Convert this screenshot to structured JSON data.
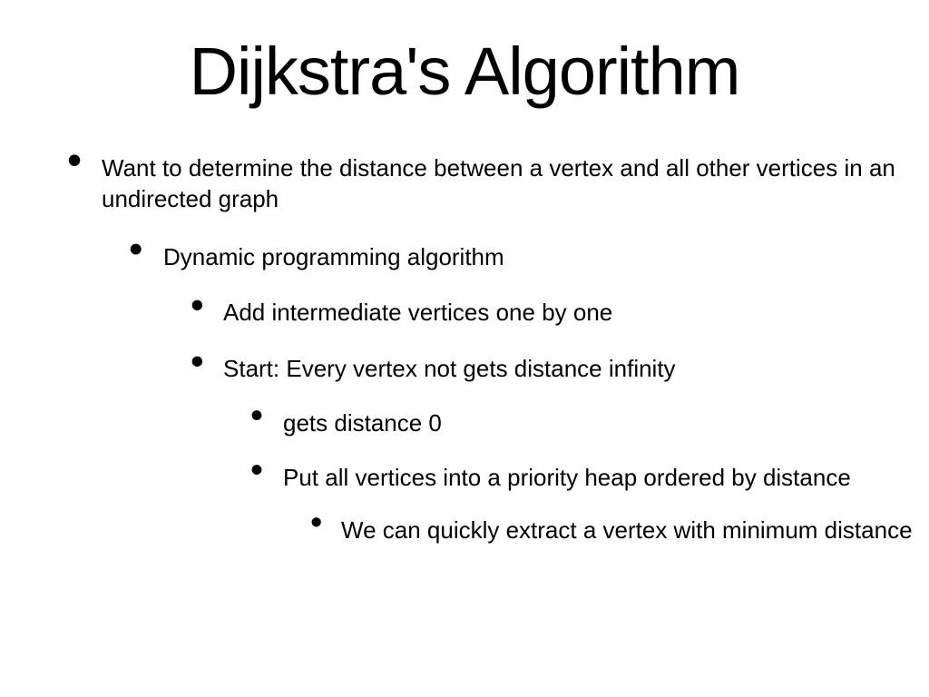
{
  "styling": {
    "background_color": "#ffffff",
    "text_color": "#000000",
    "font_family": "Arial",
    "title_fontsize": 74,
    "body_fontsize": 26,
    "bullet_char": "•",
    "slide_width": 1024,
    "slide_height": 768
  },
  "title": "Dijkstra's Algorithm",
  "bullets": {
    "b1": "Want to determine the distance between a vertex  and all other vertices in an undirected graph",
    "b1_1": "Dynamic programming algorithm",
    "b1_1_1": "Add intermediate vertices one by one",
    "b1_1_2": "Start:  Every vertex not  gets distance infinity",
    "b1_1_2_1": " gets distance 0",
    "b1_1_2_2": "Put all vertices into a priority heap ordered by distance",
    "b1_1_2_2_1": "We can quickly extract a vertex with minimum distance"
  }
}
